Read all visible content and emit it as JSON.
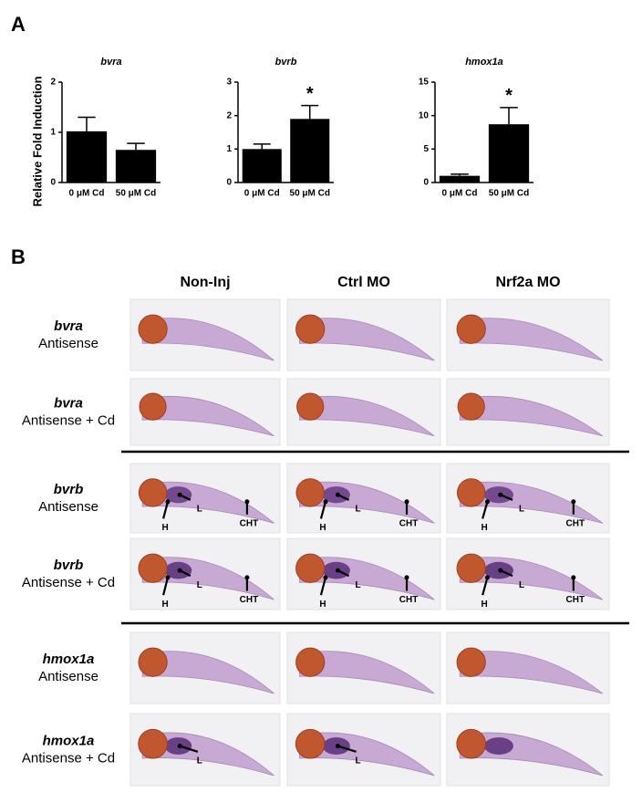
{
  "panel_labels": [
    "A",
    "B"
  ],
  "chart_data": [
    {
      "type": "bar",
      "title": "bvra",
      "y_label": "Relative Fold Induction",
      "categories": [
        "0 μM Cd",
        "50 μM Cd"
      ],
      "values": [
        1.02,
        0.65
      ],
      "errors": [
        0.28,
        0.13
      ],
      "color": "#000000",
      "ylim": [
        0,
        2
      ],
      "yticks": [
        0,
        1,
        2
      ],
      "annotations": [
        null,
        null
      ]
    },
    {
      "type": "bar",
      "title": "bvrb",
      "categories": [
        "0 μM Cd",
        "50 μM Cd"
      ],
      "values": [
        1.0,
        1.9
      ],
      "errors": [
        0.15,
        0.4
      ],
      "color": "#000000",
      "ylim": [
        0,
        3
      ],
      "yticks": [
        0,
        1,
        2,
        3
      ],
      "annotations": [
        null,
        "*"
      ]
    },
    {
      "type": "bar",
      "title": "hmox1a",
      "categories": [
        "0 μM Cd",
        "50 μM Cd"
      ],
      "values": [
        1.0,
        8.7
      ],
      "errors": [
        0.25,
        2.5
      ],
      "color": "#000000",
      "ylim": [
        0,
        15
      ],
      "yticks": [
        0,
        5,
        10,
        15
      ],
      "annotations": [
        null,
        "*"
      ]
    }
  ],
  "panel_b": {
    "columns": [
      "Non-Inj",
      "Ctrl MO",
      "Nrf2a MO"
    ],
    "rows": [
      {
        "gene": "bvra",
        "probe": "Antisense",
        "cells": [
          [],
          [],
          []
        ]
      },
      {
        "gene": "bvra",
        "probe": "Antisense + Cd",
        "cells": [
          [],
          [],
          []
        ]
      },
      {
        "gene": "bvrb",
        "probe": "Antisense",
        "cells": [
          [
            "H",
            "L",
            "CHT"
          ],
          [
            "H",
            "L",
            "CHT"
          ],
          [
            "H",
            "L",
            "CHT"
          ]
        ]
      },
      {
        "gene": "bvrb",
        "probe": "Antisense + Cd",
        "cells": [
          [
            "H",
            "L",
            "CHT"
          ],
          [
            "H",
            "L",
            "CHT"
          ],
          [
            "H",
            "L",
            "CHT"
          ]
        ]
      },
      {
        "gene": "hmox1a",
        "probe": "Antisense",
        "cells": [
          [],
          [],
          []
        ]
      },
      {
        "gene": "hmox1a",
        "probe": "Antisense + Cd",
        "cells": [
          [
            "L"
          ],
          [
            "L"
          ],
          []
        ]
      }
    ]
  }
}
